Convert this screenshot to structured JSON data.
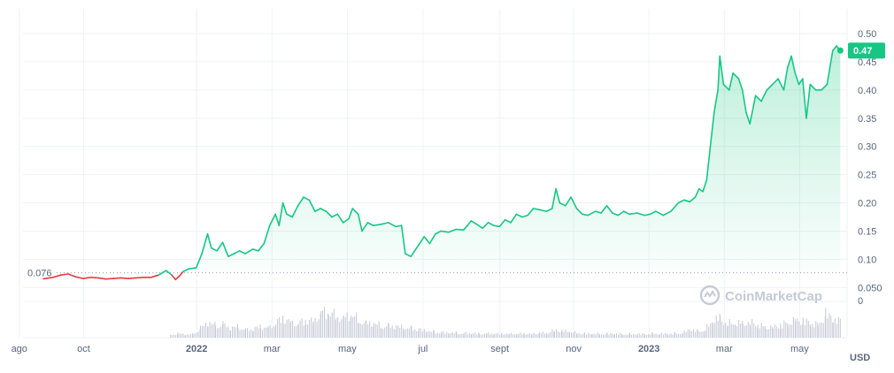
{
  "colors": {
    "up": "#16c784",
    "down": "#ea3943",
    "grid": "#eff2f5",
    "volume": "#c5c9d6",
    "axis_text": "#58667e",
    "tag_bg": "#16c784"
  },
  "watermark": "CoinMarketCap",
  "current_price_label": "0.47",
  "baseline_label": "0.076",
  "chart_data": {
    "type": "line",
    "y_unit": "USD",
    "ylim": [
      0,
      0.5
    ],
    "y_ticks": [
      "0.50",
      "0.45",
      "0.40",
      "0.35",
      "0.30",
      "0.25",
      "0.20",
      "0.15",
      "0.10",
      "0.050"
    ],
    "y_tick_values": [
      0.5,
      0.45,
      0.4,
      0.35,
      0.3,
      0.25,
      0.2,
      0.15,
      0.1,
      0.05
    ],
    "volume_axis_tick": "0",
    "x_ticks": [
      {
        "label": "ago",
        "t": 0,
        "bold": false
      },
      {
        "label": "oct",
        "t": 1.71,
        "bold": false
      },
      {
        "label": "2022",
        "t": 4.71,
        "bold": true
      },
      {
        "label": "mar",
        "t": 6.71,
        "bold": false
      },
      {
        "label": "may",
        "t": 8.71,
        "bold": false
      },
      {
        "label": "jul",
        "t": 10.72,
        "bold": false
      },
      {
        "label": "sept",
        "t": 12.76,
        "bold": false
      },
      {
        "label": "nov",
        "t": 14.72,
        "bold": false
      },
      {
        "label": "2023",
        "t": 16.72,
        "bold": true
      },
      {
        "label": "mar",
        "t": 18.72,
        "bold": false
      },
      {
        "label": "may",
        "t": 20.72,
        "bold": false
      }
    ],
    "baseline": 0.076,
    "last_price": 0.47,
    "series": [
      {
        "points": [
          [
            0.64,
            0.0655
          ],
          [
            0.9,
            0.068
          ],
          [
            1.1,
            0.072
          ],
          [
            1.3,
            0.074
          ],
          [
            1.5,
            0.069
          ],
          [
            1.7,
            0.066
          ],
          [
            1.9,
            0.068
          ],
          [
            2.1,
            0.067
          ],
          [
            2.3,
            0.065
          ],
          [
            2.5,
            0.066
          ],
          [
            2.7,
            0.067
          ],
          [
            2.9,
            0.066
          ],
          [
            3.1,
            0.067
          ],
          [
            3.3,
            0.068
          ],
          [
            3.5,
            0.068
          ],
          [
            3.7,
            0.072
          ],
          [
            3.9,
            0.08
          ],
          [
            4.05,
            0.072
          ],
          [
            4.15,
            0.064
          ],
          [
            4.25,
            0.07
          ],
          [
            4.35,
            0.078
          ],
          [
            4.5,
            0.083
          ],
          [
            4.7,
            0.085
          ],
          [
            4.85,
            0.11
          ],
          [
            5.0,
            0.145
          ],
          [
            5.1,
            0.12
          ],
          [
            5.25,
            0.115
          ],
          [
            5.4,
            0.13
          ],
          [
            5.55,
            0.105
          ],
          [
            5.7,
            0.11
          ],
          [
            5.85,
            0.115
          ],
          [
            6.0,
            0.11
          ],
          [
            6.2,
            0.118
          ],
          [
            6.35,
            0.115
          ],
          [
            6.5,
            0.128
          ],
          [
            6.65,
            0.16
          ],
          [
            6.8,
            0.18
          ],
          [
            6.9,
            0.16
          ],
          [
            7.0,
            0.2
          ],
          [
            7.1,
            0.18
          ],
          [
            7.25,
            0.175
          ],
          [
            7.4,
            0.195
          ],
          [
            7.55,
            0.21
          ],
          [
            7.7,
            0.205
          ],
          [
            7.85,
            0.185
          ],
          [
            8.0,
            0.19
          ],
          [
            8.15,
            0.185
          ],
          [
            8.3,
            0.175
          ],
          [
            8.45,
            0.18
          ],
          [
            8.6,
            0.165
          ],
          [
            8.75,
            0.172
          ],
          [
            8.85,
            0.19
          ],
          [
            9.0,
            0.18
          ],
          [
            9.1,
            0.15
          ],
          [
            9.25,
            0.165
          ],
          [
            9.4,
            0.16
          ],
          [
            9.6,
            0.162
          ],
          [
            9.8,
            0.165
          ],
          [
            10.0,
            0.158
          ],
          [
            10.15,
            0.16
          ],
          [
            10.25,
            0.11
          ],
          [
            10.4,
            0.105
          ],
          [
            10.5,
            0.115
          ],
          [
            10.6,
            0.125
          ],
          [
            10.75,
            0.14
          ],
          [
            10.9,
            0.128
          ],
          [
            11.05,
            0.145
          ],
          [
            11.2,
            0.15
          ],
          [
            11.4,
            0.148
          ],
          [
            11.6,
            0.153
          ],
          [
            11.8,
            0.152
          ],
          [
            11.9,
            0.16
          ],
          [
            12.0,
            0.168
          ],
          [
            12.15,
            0.162
          ],
          [
            12.3,
            0.155
          ],
          [
            12.45,
            0.165
          ],
          [
            12.6,
            0.16
          ],
          [
            12.75,
            0.158
          ],
          [
            12.9,
            0.17
          ],
          [
            13.05,
            0.165
          ],
          [
            13.2,
            0.18
          ],
          [
            13.35,
            0.175
          ],
          [
            13.5,
            0.178
          ],
          [
            13.65,
            0.19
          ],
          [
            13.8,
            0.188
          ],
          [
            14.0,
            0.185
          ],
          [
            14.15,
            0.19
          ],
          [
            14.25,
            0.225
          ],
          [
            14.35,
            0.2
          ],
          [
            14.5,
            0.195
          ],
          [
            14.65,
            0.21
          ],
          [
            14.8,
            0.19
          ],
          [
            14.95,
            0.18
          ],
          [
            15.1,
            0.178
          ],
          [
            15.3,
            0.185
          ],
          [
            15.45,
            0.182
          ],
          [
            15.6,
            0.195
          ],
          [
            15.75,
            0.182
          ],
          [
            15.9,
            0.178
          ],
          [
            16.05,
            0.185
          ],
          [
            16.2,
            0.18
          ],
          [
            16.4,
            0.182
          ],
          [
            16.6,
            0.178
          ],
          [
            16.75,
            0.18
          ],
          [
            16.9,
            0.185
          ],
          [
            17.1,
            0.178
          ],
          [
            17.3,
            0.185
          ],
          [
            17.5,
            0.2
          ],
          [
            17.65,
            0.205
          ],
          [
            17.8,
            0.202
          ],
          [
            17.95,
            0.21
          ],
          [
            18.05,
            0.225
          ],
          [
            18.15,
            0.22
          ],
          [
            18.25,
            0.24
          ],
          [
            18.35,
            0.3
          ],
          [
            18.45,
            0.36
          ],
          [
            18.55,
            0.4
          ],
          [
            18.6,
            0.46
          ],
          [
            18.7,
            0.41
          ],
          [
            18.85,
            0.4
          ],
          [
            18.95,
            0.43
          ],
          [
            19.1,
            0.42
          ],
          [
            19.2,
            0.4
          ],
          [
            19.3,
            0.36
          ],
          [
            19.4,
            0.34
          ],
          [
            19.55,
            0.39
          ],
          [
            19.7,
            0.38
          ],
          [
            19.85,
            0.4
          ],
          [
            20.0,
            0.41
          ],
          [
            20.15,
            0.42
          ],
          [
            20.3,
            0.4
          ],
          [
            20.4,
            0.44
          ],
          [
            20.5,
            0.46
          ],
          [
            20.6,
            0.43
          ],
          [
            20.7,
            0.41
          ],
          [
            20.8,
            0.42
          ],
          [
            20.9,
            0.35
          ],
          [
            21.0,
            0.41
          ],
          [
            21.15,
            0.4
          ],
          [
            21.3,
            0.4
          ],
          [
            21.45,
            0.41
          ],
          [
            21.6,
            0.47
          ],
          [
            21.7,
            0.478
          ],
          [
            21.8,
            0.47
          ]
        ]
      }
    ],
    "volume": [
      [
        4.0,
        0.1
      ],
      [
        4.2,
        0.15
      ],
      [
        4.4,
        0.12
      ],
      [
        4.6,
        0.13
      ],
      [
        4.8,
        0.35
      ],
      [
        5.0,
        0.55
      ],
      [
        5.2,
        0.45
      ],
      [
        5.4,
        0.5
      ],
      [
        5.6,
        0.35
      ],
      [
        5.8,
        0.4
      ],
      [
        6.0,
        0.3
      ],
      [
        6.2,
        0.32
      ],
      [
        6.4,
        0.4
      ],
      [
        6.6,
        0.38
      ],
      [
        6.8,
        0.55
      ],
      [
        7.0,
        0.7
      ],
      [
        7.2,
        0.6
      ],
      [
        7.4,
        0.55
      ],
      [
        7.6,
        0.6
      ],
      [
        7.8,
        0.65
      ],
      [
        8.0,
        0.95
      ],
      [
        8.2,
        0.9
      ],
      [
        8.4,
        0.85
      ],
      [
        8.6,
        0.75
      ],
      [
        8.8,
        0.8
      ],
      [
        9.0,
        0.7
      ],
      [
        9.2,
        0.55
      ],
      [
        9.4,
        0.5
      ],
      [
        9.6,
        0.45
      ],
      [
        9.8,
        0.45
      ],
      [
        10.0,
        0.4
      ],
      [
        10.2,
        0.38
      ],
      [
        10.4,
        0.35
      ],
      [
        10.6,
        0.3
      ],
      [
        10.8,
        0.25
      ],
      [
        11.0,
        0.22
      ],
      [
        11.2,
        0.2
      ],
      [
        11.4,
        0.18
      ],
      [
        11.6,
        0.18
      ],
      [
        11.8,
        0.16
      ],
      [
        12.0,
        0.16
      ],
      [
        12.2,
        0.15
      ],
      [
        12.4,
        0.16
      ],
      [
        12.6,
        0.14
      ],
      [
        12.8,
        0.14
      ],
      [
        13.0,
        0.15
      ],
      [
        13.2,
        0.14
      ],
      [
        13.4,
        0.15
      ],
      [
        13.6,
        0.15
      ],
      [
        13.8,
        0.18
      ],
      [
        14.0,
        0.16
      ],
      [
        14.2,
        0.3
      ],
      [
        14.4,
        0.25
      ],
      [
        14.6,
        0.22
      ],
      [
        14.8,
        0.18
      ],
      [
        15.0,
        0.15
      ],
      [
        15.2,
        0.14
      ],
      [
        15.4,
        0.15
      ],
      [
        15.6,
        0.15
      ],
      [
        15.8,
        0.14
      ],
      [
        16.0,
        0.14
      ],
      [
        16.2,
        0.13
      ],
      [
        16.4,
        0.13
      ],
      [
        16.6,
        0.13
      ],
      [
        16.8,
        0.15
      ],
      [
        17.0,
        0.14
      ],
      [
        17.2,
        0.14
      ],
      [
        17.4,
        0.16
      ],
      [
        17.6,
        0.18
      ],
      [
        17.8,
        0.3
      ],
      [
        18.0,
        0.25
      ],
      [
        18.2,
        0.3
      ],
      [
        18.4,
        0.6
      ],
      [
        18.6,
        0.75
      ],
      [
        18.8,
        0.55
      ],
      [
        19.0,
        0.5
      ],
      [
        19.2,
        0.55
      ],
      [
        19.4,
        0.6
      ],
      [
        19.6,
        0.45
      ],
      [
        19.8,
        0.4
      ],
      [
        20.0,
        0.42
      ],
      [
        20.2,
        0.45
      ],
      [
        20.4,
        0.55
      ],
      [
        20.6,
        0.7
      ],
      [
        20.8,
        0.6
      ],
      [
        21.0,
        0.55
      ],
      [
        21.2,
        0.5
      ],
      [
        21.4,
        0.85
      ],
      [
        21.6,
        0.7
      ],
      [
        21.8,
        0.6
      ]
    ]
  }
}
